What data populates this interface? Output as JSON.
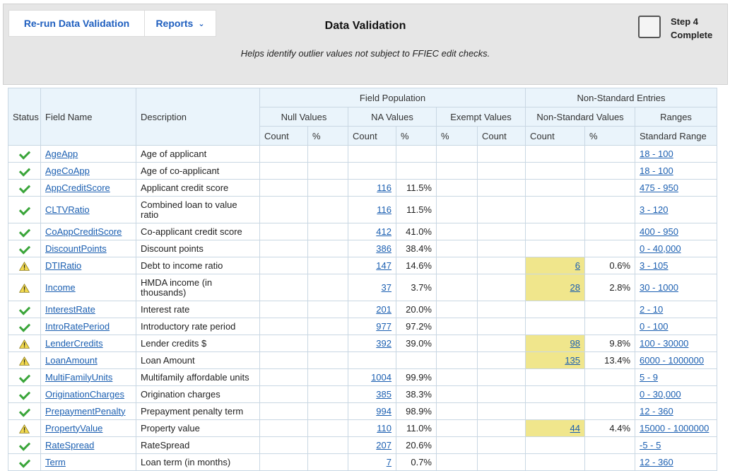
{
  "toolbar": {
    "rerun_label": "Re-run Data Validation",
    "reports_label": "Reports"
  },
  "page": {
    "title": "Data Validation",
    "subtitle": "Helps identify outlier values not subject to FFIEC edit checks."
  },
  "step": {
    "line1": "Step 4",
    "line2": "Complete"
  },
  "headers": {
    "status": "Status",
    "field_name": "Field Name",
    "description": "Description",
    "field_population": "Field Population",
    "non_standard_entries": "Non-Standard Entries",
    "null_values": "Null Values",
    "na_values": "NA Values",
    "exempt_values": "Exempt Values",
    "non_standard_values": "Non-Standard Values",
    "ranges": "Ranges",
    "count": "Count",
    "percent": "%",
    "standard_range": "Standard Range"
  },
  "rows": [
    {
      "status": "ok",
      "field": "AgeApp",
      "desc": "Age of applicant",
      "na_count": "",
      "na_pct": "",
      "ns_count": "",
      "ns_pct": "",
      "range": "18 - 100",
      "tall": false
    },
    {
      "status": "ok",
      "field": "AgeCoApp",
      "desc": "Age of co-applicant",
      "na_count": "",
      "na_pct": "",
      "ns_count": "",
      "ns_pct": "",
      "range": "18 - 100",
      "tall": false
    },
    {
      "status": "ok",
      "field": "AppCreditScore",
      "desc": "Applicant credit score",
      "na_count": "116",
      "na_pct": "11.5%",
      "ns_count": "",
      "ns_pct": "",
      "range": "475 - 950",
      "tall": false
    },
    {
      "status": "ok",
      "field": "CLTVRatio",
      "desc": "Combined loan to value ratio",
      "na_count": "116",
      "na_pct": "11.5%",
      "ns_count": "",
      "ns_pct": "",
      "range": "3 - 120",
      "tall": true
    },
    {
      "status": "ok",
      "field": "CoAppCreditScore",
      "desc": "Co-applicant credit score",
      "na_count": "412",
      "na_pct": "41.0%",
      "ns_count": "",
      "ns_pct": "",
      "range": "400 - 950",
      "tall": false
    },
    {
      "status": "ok",
      "field": "DiscountPoints",
      "desc": "Discount points",
      "na_count": "386",
      "na_pct": "38.4%",
      "ns_count": "",
      "ns_pct": "",
      "range": "0 - 40,000",
      "tall": false
    },
    {
      "status": "warn",
      "field": "DTIRatio",
      "desc": "Debt to income ratio",
      "na_count": "147",
      "na_pct": "14.6%",
      "ns_count": "6",
      "ns_pct": "0.6%",
      "range": "3 - 105",
      "tall": false
    },
    {
      "status": "warn",
      "field": "Income",
      "desc": "HMDA income (in thousands)",
      "na_count": "37",
      "na_pct": "3.7%",
      "ns_count": "28",
      "ns_pct": "2.8%",
      "range": "30 - 1000",
      "tall": true
    },
    {
      "status": "ok",
      "field": "InterestRate",
      "desc": "Interest rate",
      "na_count": "201",
      "na_pct": "20.0%",
      "ns_count": "",
      "ns_pct": "",
      "range": "2 - 10",
      "tall": false
    },
    {
      "status": "ok",
      "field": "IntroRatePeriod",
      "desc": "Introductory rate period",
      "na_count": "977",
      "na_pct": "97.2%",
      "ns_count": "",
      "ns_pct": "",
      "range": "0 - 100",
      "tall": false
    },
    {
      "status": "warn",
      "field": "LenderCredits",
      "desc": "Lender credits $",
      "na_count": "392",
      "na_pct": "39.0%",
      "ns_count": "98",
      "ns_pct": "9.8%",
      "range": "100 - 30000",
      "tall": false
    },
    {
      "status": "warn",
      "field": "LoanAmount",
      "desc": "Loan Amount",
      "na_count": "",
      "na_pct": "",
      "ns_count": "135",
      "ns_pct": "13.4%",
      "range": "6000 - 1000000",
      "tall": false
    },
    {
      "status": "ok",
      "field": "MultiFamilyUnits",
      "desc": "Multifamily affordable units",
      "na_count": "1004",
      "na_pct": "99.9%",
      "ns_count": "",
      "ns_pct": "",
      "range": "5 - 9",
      "tall": false
    },
    {
      "status": "ok",
      "field": "OriginationCharges",
      "desc": "Origination charges",
      "na_count": "385",
      "na_pct": "38.3%",
      "ns_count": "",
      "ns_pct": "",
      "range": "0 - 30,000",
      "tall": false
    },
    {
      "status": "ok",
      "field": "PrepaymentPenalty",
      "desc": "Prepayment penalty term",
      "na_count": "994",
      "na_pct": "98.9%",
      "ns_count": "",
      "ns_pct": "",
      "range": "12 - 360",
      "tall": false
    },
    {
      "status": "warn",
      "field": "PropertyValue",
      "desc": "Property value",
      "na_count": "110",
      "na_pct": "11.0%",
      "ns_count": "44",
      "ns_pct": "4.4%",
      "range": "15000 - 1000000",
      "tall": false
    },
    {
      "status": "ok",
      "field": "RateSpread",
      "desc": "RateSpread",
      "na_count": "207",
      "na_pct": "20.6%",
      "ns_count": "",
      "ns_pct": "",
      "range": "-5 - 5",
      "tall": false
    },
    {
      "status": "ok",
      "field": "Term",
      "desc": "Loan term (in months)",
      "na_count": "7",
      "na_pct": "0.7%",
      "ns_count": "",
      "ns_pct": "",
      "range": "12 - 360",
      "tall": false
    }
  ],
  "colors": {
    "ok": "#3aa53a",
    "warn_fill": "#f2d94e",
    "highlight": "#f0e68c",
    "link": "#1b5fb1"
  }
}
